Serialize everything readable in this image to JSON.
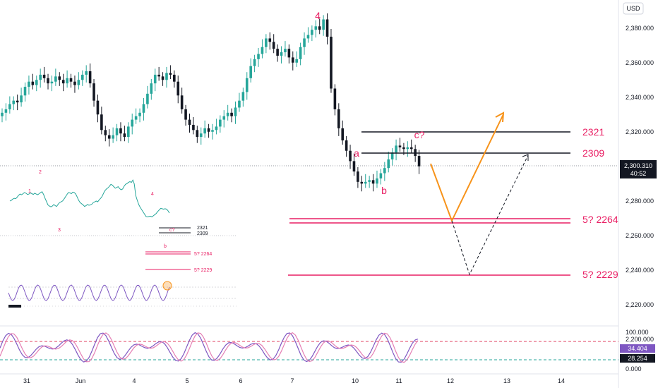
{
  "header": {
    "currency": "USD"
  },
  "colors": {
    "up": "#26a69a",
    "down": "#131722",
    "wave": "#e91e63",
    "projection": "#f7931a",
    "stoch_k": "#7e57c2",
    "stoch_d": "#e57fb4",
    "badge": "#131722"
  },
  "chart_data": {
    "type": "candlestick",
    "price_axis": {
      "ticks": [
        "2,380.000",
        "2,360.000",
        "2,340.000",
        "2,320.000",
        "2,300.000",
        "2,280.000",
        "2,260.000",
        "2,240.000",
        "2,220.000",
        "2,200.000"
      ],
      "range": [
        2196,
        2400
      ]
    },
    "time_axis": {
      "labels": [
        "31",
        "Jun",
        "4",
        "5",
        "6",
        "7",
        "10",
        "11",
        "12",
        "13",
        "14"
      ]
    },
    "last_price": {
      "value": "2,300.310",
      "countdown": "40:52"
    },
    "closes": [
      2331,
      2333,
      2336,
      2338,
      2337,
      2341,
      2346,
      2349,
      2347,
      2350,
      2353,
      2351,
      2348,
      2349,
      2352,
      2350,
      2348,
      2351,
      2349,
      2347,
      2350,
      2353,
      2355,
      2348,
      2338,
      2330,
      2321,
      2318,
      2316,
      2318,
      2322,
      2319,
      2317,
      2323,
      2327,
      2329,
      2331,
      2336,
      2342,
      2348,
      2353,
      2352,
      2350,
      2354,
      2353,
      2349,
      2341,
      2333,
      2327,
      2324,
      2321,
      2317,
      2319,
      2322,
      2320,
      2321,
      2323,
      2327,
      2329,
      2331,
      2329,
      2334,
      2338,
      2343,
      2351,
      2358,
      2362,
      2365,
      2369,
      2374,
      2372,
      2368,
      2364,
      2366,
      2368,
      2363,
      2360,
      2362,
      2369,
      2374,
      2376,
      2379,
      2381,
      2379,
      2385,
      2375,
      2345,
      2333,
      2322,
      2315,
      2309,
      2303,
      2297,
      2291,
      2290,
      2291,
      2292,
      2290,
      2293,
      2296,
      2299,
      2304,
      2308,
      2312,
      2311,
      2310,
      2311,
      2310,
      2306,
      2300
    ],
    "annotations": {
      "wave_4": "4",
      "wave_a": "a",
      "wave_b": "b",
      "wave_c": "c?"
    },
    "levels": [
      {
        "label": "2321",
        "value": 2321,
        "color": "#131722"
      },
      {
        "label": "2309",
        "value": 2309,
        "color": "#131722"
      },
      {
        "label": "5? 2264",
        "value": 2264,
        "color": "#e91e63"
      },
      {
        "label": "5? 2229",
        "value": 2229,
        "color": "#e91e63"
      }
    ],
    "stochastic": {
      "ticks": [
        "100.000",
        "0.000"
      ],
      "k": "34.404",
      "d": "28.254",
      "upper": 80,
      "lower": 20
    },
    "inset": {
      "labels": {
        "w1": "1",
        "w2": "2",
        "w3": "3",
        "w4": "4",
        "wb": "b",
        "wc": "c?"
      },
      "levels": [
        "2321",
        "2309",
        "5? 2264",
        "5? 2229"
      ]
    }
  }
}
